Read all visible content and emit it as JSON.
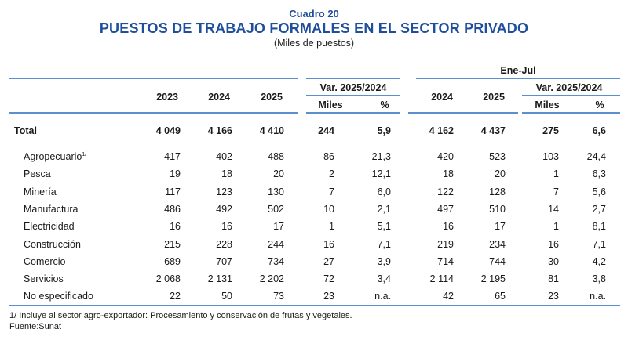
{
  "header": {
    "table_number": "Cuadro 20",
    "title": "PUESTOS DE TRABAJO FORMALES EN EL SECTOR PRIVADO",
    "subtitle": "(Miles de puestos)"
  },
  "columns": {
    "group_period": "Ene-Jul",
    "var_label": "Var. 2025/2024",
    "years": [
      "2023",
      "2024",
      "2025"
    ],
    "period_years": [
      "2024",
      "2025"
    ],
    "miles": "Miles",
    "pct": "%"
  },
  "total": {
    "label": "Total",
    "values": [
      "4 049",
      "4 166",
      "4 410",
      "244",
      "5,9",
      "4 162",
      "4 437",
      "275",
      "6,6"
    ]
  },
  "rows": [
    {
      "label": "Agropecuario",
      "note": "1/",
      "values": [
        "417",
        "402",
        "488",
        "86",
        "21,3",
        "420",
        "523",
        "103",
        "24,4"
      ]
    },
    {
      "label": "Pesca",
      "values": [
        "19",
        "18",
        "20",
        "2",
        "12,1",
        "18",
        "20",
        "1",
        "6,3"
      ]
    },
    {
      "label": "Minería",
      "values": [
        "117",
        "123",
        "130",
        "7",
        "6,0",
        "122",
        "128",
        "7",
        "5,6"
      ]
    },
    {
      "label": "Manufactura",
      "values": [
        "486",
        "492",
        "502",
        "10",
        "2,1",
        "497",
        "510",
        "14",
        "2,7"
      ]
    },
    {
      "label": "Electricidad",
      "values": [
        "16",
        "16",
        "17",
        "1",
        "5,1",
        "16",
        "17",
        "1",
        "8,1"
      ]
    },
    {
      "label": "Construcción",
      "values": [
        "215",
        "228",
        "244",
        "16",
        "7,1",
        "219",
        "234",
        "16",
        "7,1"
      ]
    },
    {
      "label": "Comercio",
      "values": [
        "689",
        "707",
        "734",
        "27",
        "3,9",
        "714",
        "744",
        "30",
        "4,2"
      ]
    },
    {
      "label": "Servicios",
      "values": [
        "2 068",
        "2 131",
        "2 202",
        "72",
        "3,4",
        "2 114",
        "2 195",
        "81",
        "3,8"
      ]
    },
    {
      "label": "No especificado",
      "values": [
        "22",
        "50",
        "73",
        "23",
        "n.a.",
        "42",
        "65",
        "23",
        "n.a."
      ]
    }
  ],
  "footnotes": {
    "note1": "1/ Incluye al sector agro-exportador: Procesamiento y conservación de frutas y vegetales.",
    "source": "Fuente:Sunat"
  },
  "colors": {
    "title": "#1f4e9c",
    "rule": "#5b8fd0"
  }
}
